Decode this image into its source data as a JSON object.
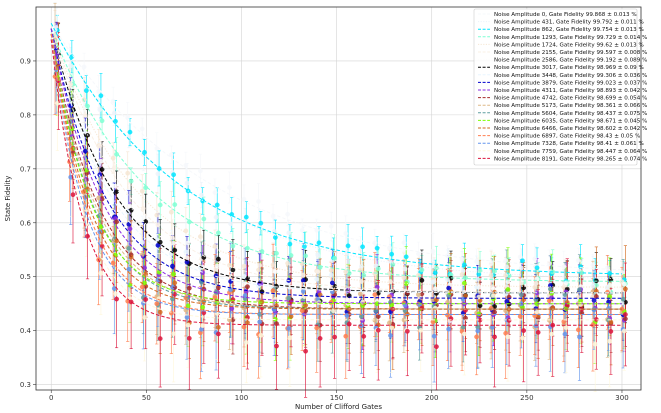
{
  "chart_data": {
    "type": "scatter",
    "xlabel": "Number of Clifford Gates",
    "ylabel": "State Fidelity",
    "xlim": [
      -8,
      310
    ],
    "ylim": [
      0.29,
      1.0
    ],
    "xticks": [
      0,
      50,
      100,
      150,
      200,
      250,
      300
    ],
    "yticks": [
      0.3,
      0.4,
      0.5,
      0.6,
      0.7,
      0.8,
      0.9
    ],
    "grid": true,
    "legend_position": "top-right",
    "x": [
      0,
      300
    ],
    "series": [
      {
        "name": "Noise Amplitude 0, Gate Fidelity 99.868 ± 0.013 %",
        "color": "#f6f8fb",
        "linestyle": "dashed",
        "asymptote": 0.5,
        "start": 0.97
      },
      {
        "name": "Noise Amplitude 431, Gate Fidelity 99.792 ± 0.011 %",
        "color": "#ecf3fa",
        "linestyle": "dotted",
        "asymptote": 0.49,
        "start": 0.97
      },
      {
        "name": "Noise Amplitude 862, Gate Fidelity 99.754 ± 0.013 %",
        "color": "#00e5ff",
        "linestyle": "dashed",
        "asymptote": 0.5,
        "start": 0.97
      },
      {
        "name": "Noise Amplitude 1293, Gate Fidelity 99.729 ± 0.014 %",
        "color": "#7fffd4",
        "linestyle": "dashed",
        "asymptote": 0.49,
        "start": 0.96
      },
      {
        "name": "Noise Amplitude 1724, Gate Fidelity 99.62 ± 0.013 %",
        "color": "#f6e6d3",
        "linestyle": "dotted",
        "asymptote": 0.48,
        "start": 0.96
      },
      {
        "name": "Noise Amplitude 2155, Gate Fidelity 99.597 ± 0.008 %",
        "color": "#faf0e6",
        "linestyle": "dashed",
        "asymptote": 0.47,
        "start": 0.96
      },
      {
        "name": "Noise Amplitude 2586, Gate Fidelity 99.192 ± 0.089 %",
        "color": "#fdfdfd",
        "linestyle": "dotted",
        "asymptote": 0.47,
        "start": 0.96
      },
      {
        "name": "Noise Amplitude 3017, Gate Fidelity 98.969 ± 0.09 %",
        "color": "#000000",
        "linestyle": "dashed",
        "asymptote": 0.47,
        "start": 0.96
      },
      {
        "name": "Noise Amplitude 3448, Gate Fidelity 99.306 ± 0.036 %",
        "color": "#e8f6ff",
        "linestyle": "dashed",
        "asymptote": 0.47,
        "start": 0.96
      },
      {
        "name": "Noise Amplitude 3879, Gate Fidelity 99.023 ± 0.037 %",
        "color": "#0000cd",
        "linestyle": "dashed",
        "asymptote": 0.46,
        "start": 0.96
      },
      {
        "name": "Noise Amplitude 4311, Gate Fidelity 98.893 ± 0.042 %",
        "color": "#8a2be2",
        "linestyle": "dashed",
        "asymptote": 0.45,
        "start": 0.96
      },
      {
        "name": "Noise Amplitude 4742, Gate Fidelity 98.699 ± 0.054 %",
        "color": "#a52a2a",
        "linestyle": "dashed",
        "asymptote": 0.44,
        "start": 0.95
      },
      {
        "name": "Noise Amplitude 5173, Gate Fidelity 98.361 ± 0.066 %",
        "color": "#deb887",
        "linestyle": "dashed",
        "asymptote": 0.44,
        "start": 0.95
      },
      {
        "name": "Noise Amplitude 5604, Gate Fidelity 98.437 ± 0.075 %",
        "color": "#5f9ea0",
        "linestyle": "dashed",
        "asymptote": 0.44,
        "start": 0.95
      },
      {
        "name": "Noise Amplitude 6035, Gate Fidelity 98.671 ± 0.045 %",
        "color": "#7fff00",
        "linestyle": "dashed",
        "asymptote": 0.45,
        "start": 0.95
      },
      {
        "name": "Noise Amplitude 6466, Gate Fidelity 98.602 ± 0.042 %",
        "color": "#d2691e",
        "linestyle": "dashed",
        "asymptote": 0.44,
        "start": 0.95
      },
      {
        "name": "Noise Amplitude 6897, Gate Fidelity 98.43 ± 0.05 %",
        "color": "#ff7f50",
        "linestyle": "dashed",
        "asymptote": 0.43,
        "start": 0.95
      },
      {
        "name": "Noise Amplitude 7328, Gate Fidelity 98.41 ± 0.061 %",
        "color": "#6495ed",
        "linestyle": "dashed",
        "asymptote": 0.43,
        "start": 0.94
      },
      {
        "name": "Noise Amplitude 7759, Gate Fidelity 98.447 ± 0.064 %",
        "color": "#fff8dc",
        "linestyle": "dashed",
        "asymptote": 0.42,
        "start": 0.94
      },
      {
        "name": "Noise Amplitude 8191, Gate Fidelity 98.265 ± 0.074 %",
        "color": "#dc143c",
        "linestyle": "dashed",
        "asymptote": 0.41,
        "start": 0.94
      }
    ]
  }
}
